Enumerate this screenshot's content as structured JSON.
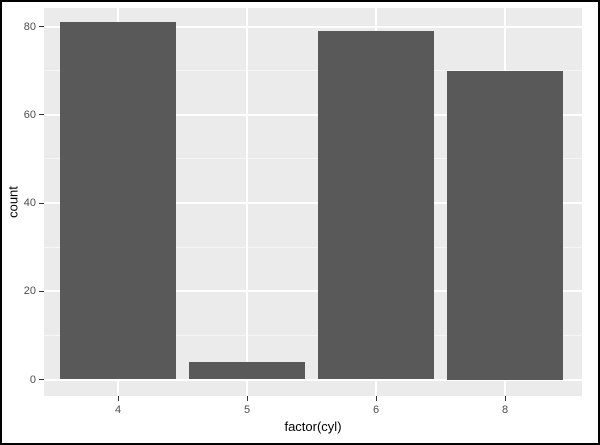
{
  "chart_data": {
    "type": "bar",
    "title": "",
    "xlabel": "factor(cyl)",
    "ylabel": "count",
    "categories": [
      "4",
      "5",
      "6",
      "8"
    ],
    "values": [
      81,
      4,
      79,
      70
    ],
    "y_major_ticks": [
      0,
      20,
      40,
      60,
      80
    ],
    "y_minor_ticks": [
      10,
      30,
      50,
      70
    ],
    "ylim": [
      -4,
      85
    ],
    "grid": "major-and-minor",
    "legend": "none",
    "style": "ggplot2-grey-theme"
  },
  "colors": {
    "bar_fill": "#595959",
    "panel_background": "#EBEBEB",
    "grid_major": "#FFFFFF",
    "grid_minor": "#F6F6F6",
    "tick_label_text": "#4D4D4D",
    "tick_mark": "#333333",
    "axis_title_text": "#000000",
    "figure_background": "#FFFFFF",
    "frame_border": "#000000"
  }
}
